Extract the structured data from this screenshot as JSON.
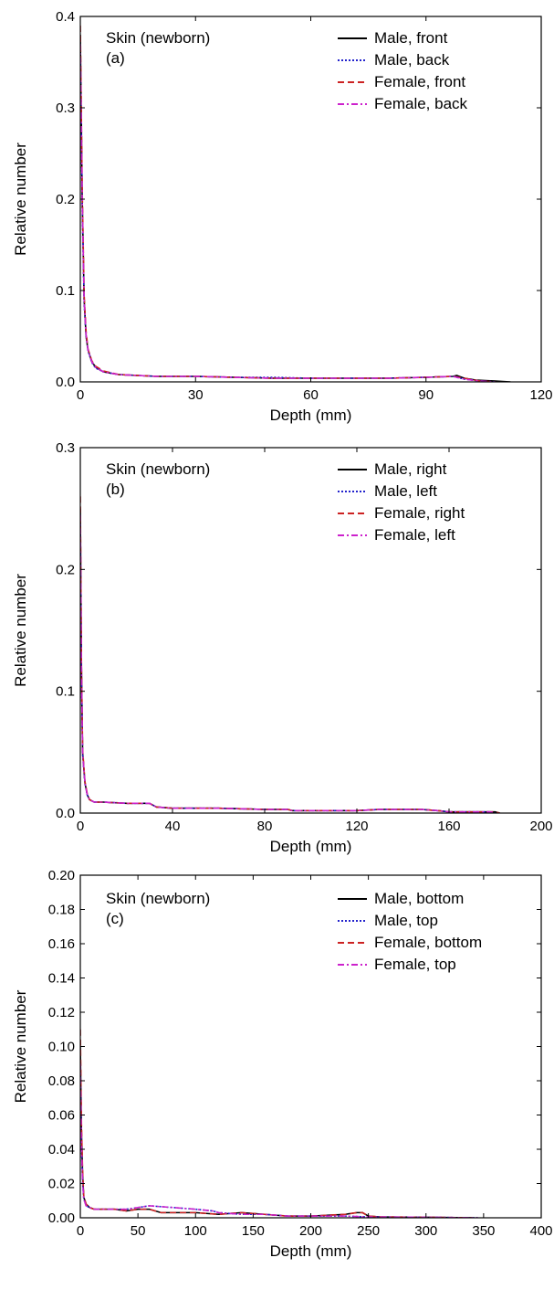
{
  "chart_data": [
    {
      "type": "line",
      "annotation": "Skin (newborn)",
      "panel_label": "(a)",
      "xlabel": "Depth (mm)",
      "ylabel": "Relative number",
      "xlim": [
        0,
        120
      ],
      "ylim": [
        0,
        0.4
      ],
      "x_ticks": [
        "0",
        "30",
        "60",
        "90",
        "120"
      ],
      "y_ticks": [
        "0.0",
        "0.1",
        "0.2",
        "0.3",
        "0.4"
      ],
      "legend_position": "top-right",
      "series": [
        {
          "name": "Male, front",
          "color": "#000000",
          "dash": "solid",
          "x": [
            0,
            0.5,
            1,
            1.5,
            2,
            3,
            4,
            6,
            10,
            20,
            30,
            40,
            50,
            60,
            70,
            80,
            90,
            97,
            98,
            100,
            103,
            108,
            112
          ],
          "y": [
            0.38,
            0.2,
            0.09,
            0.05,
            0.035,
            0.022,
            0.016,
            0.011,
            0.008,
            0.006,
            0.006,
            0.005,
            0.004,
            0.004,
            0.004,
            0.004,
            0.005,
            0.006,
            0.007,
            0.004,
            0.002,
            0.001,
            0.0
          ]
        },
        {
          "name": "Male, back",
          "color": "#2222cc",
          "dash": "dotted",
          "x": [
            0,
            0.5,
            1,
            1.5,
            2,
            3,
            4,
            6,
            10,
            20,
            30,
            40,
            50,
            60,
            70,
            80,
            90,
            97,
            100,
            104,
            108
          ],
          "y": [
            0.36,
            0.19,
            0.085,
            0.05,
            0.034,
            0.021,
            0.015,
            0.011,
            0.008,
            0.006,
            0.006,
            0.005,
            0.005,
            0.004,
            0.004,
            0.004,
            0.005,
            0.006,
            0.003,
            0.001,
            0.0
          ]
        },
        {
          "name": "Female, front",
          "color": "#cc2222",
          "dash": "dashed",
          "x": [
            0,
            0.5,
            1,
            1.5,
            2,
            3,
            4,
            6,
            10,
            20,
            30,
            40,
            50,
            60,
            70,
            80,
            90,
            97,
            100,
            104,
            108
          ],
          "y": [
            0.39,
            0.21,
            0.095,
            0.055,
            0.036,
            0.023,
            0.017,
            0.012,
            0.008,
            0.006,
            0.006,
            0.005,
            0.004,
            0.004,
            0.004,
            0.004,
            0.005,
            0.006,
            0.004,
            0.001,
            0.0
          ]
        },
        {
          "name": "Female, back",
          "color": "#cc22cc",
          "dash": "dashdot",
          "x": [
            0,
            0.5,
            1,
            1.5,
            2,
            3,
            4,
            6,
            10,
            20,
            30,
            40,
            50,
            60,
            70,
            80,
            90,
            97,
            100,
            104,
            108
          ],
          "y": [
            0.37,
            0.2,
            0.09,
            0.052,
            0.035,
            0.022,
            0.016,
            0.011,
            0.008,
            0.006,
            0.006,
            0.005,
            0.004,
            0.004,
            0.004,
            0.004,
            0.005,
            0.006,
            0.003,
            0.001,
            0.0
          ]
        }
      ]
    },
    {
      "type": "line",
      "annotation": "Skin (newborn)",
      "panel_label": "(b)",
      "xlabel": "Depth (mm)",
      "ylabel": "Relative number",
      "xlim": [
        0,
        200
      ],
      "ylim": [
        0,
        0.3
      ],
      "x_ticks": [
        "0",
        "40",
        "80",
        "120",
        "160",
        "200"
      ],
      "y_ticks": [
        "0.0",
        "0.1",
        "0.2",
        "0.3"
      ],
      "legend_position": "top-right",
      "series": [
        {
          "name": "Male, right",
          "color": "#000000",
          "dash": "solid",
          "x": [
            0,
            0.5,
            1,
            2,
            3,
            4,
            6,
            10,
            20,
            30,
            33,
            40,
            60,
            80,
            90,
            92,
            120,
            130,
            140,
            148,
            155,
            160,
            170,
            180,
            182
          ],
          "y": [
            0.25,
            0.12,
            0.05,
            0.025,
            0.015,
            0.011,
            0.009,
            0.009,
            0.008,
            0.008,
            0.005,
            0.004,
            0.004,
            0.003,
            0.003,
            0.002,
            0.002,
            0.003,
            0.003,
            0.003,
            0.002,
            0.001,
            0.001,
            0.001,
            0.0
          ]
        },
        {
          "name": "Male, left",
          "color": "#2222cc",
          "dash": "dotted",
          "x": [
            0,
            0.5,
            1,
            2,
            3,
            4,
            6,
            10,
            20,
            30,
            33,
            40,
            60,
            80,
            90,
            92,
            120,
            130,
            140,
            148,
            155,
            160,
            170,
            178,
            180
          ],
          "y": [
            0.24,
            0.11,
            0.048,
            0.024,
            0.015,
            0.011,
            0.009,
            0.009,
            0.008,
            0.008,
            0.005,
            0.004,
            0.004,
            0.003,
            0.003,
            0.002,
            0.002,
            0.003,
            0.003,
            0.003,
            0.002,
            0.001,
            0.001,
            0.001,
            0.0
          ]
        },
        {
          "name": "Female, right",
          "color": "#cc2222",
          "dash": "dashed",
          "x": [
            0,
            0.5,
            1,
            2,
            3,
            4,
            6,
            10,
            20,
            30,
            33,
            40,
            60,
            80,
            90,
            92,
            120,
            130,
            140,
            148,
            155,
            160,
            170,
            180,
            182
          ],
          "y": [
            0.26,
            0.12,
            0.052,
            0.026,
            0.016,
            0.011,
            0.009,
            0.009,
            0.008,
            0.008,
            0.005,
            0.004,
            0.004,
            0.003,
            0.003,
            0.002,
            0.002,
            0.003,
            0.003,
            0.003,
            0.002,
            0.001,
            0.001,
            0.001,
            0.0
          ]
        },
        {
          "name": "Female, left",
          "color": "#cc22cc",
          "dash": "dashdot",
          "x": [
            0,
            0.5,
            1,
            2,
            3,
            4,
            6,
            10,
            20,
            30,
            33,
            40,
            60,
            80,
            90,
            92,
            120,
            130,
            140,
            148,
            155,
            160,
            170,
            178,
            180
          ],
          "y": [
            0.245,
            0.115,
            0.05,
            0.025,
            0.015,
            0.011,
            0.009,
            0.009,
            0.008,
            0.008,
            0.005,
            0.004,
            0.004,
            0.003,
            0.003,
            0.002,
            0.002,
            0.003,
            0.003,
            0.003,
            0.002,
            0.001,
            0.001,
            0.001,
            0.0
          ]
        }
      ]
    },
    {
      "type": "line",
      "annotation": "Skin (newborn)",
      "panel_label": "(c)",
      "xlabel": "Depth (mm)",
      "ylabel": "Relative number",
      "xlim": [
        0,
        400
      ],
      "ylim": [
        0,
        0.2
      ],
      "x_ticks": [
        "0",
        "50",
        "100",
        "150",
        "200",
        "250",
        "300",
        "350",
        "400"
      ],
      "y_ticks": [
        "0.00",
        "0.02",
        "0.04",
        "0.06",
        "0.08",
        "0.10",
        "0.12",
        "0.14",
        "0.16",
        "0.18",
        "0.20"
      ],
      "legend_position": "top-right",
      "series": [
        {
          "name": "Male, bottom",
          "color": "#000000",
          "dash": "solid",
          "x": [
            0,
            1,
            2,
            3,
            5,
            8,
            12,
            20,
            30,
            40,
            50,
            60,
            70,
            80,
            100,
            120,
            140,
            160,
            180,
            200,
            230,
            240,
            245,
            250,
            260,
            300,
            340
          ],
          "y": [
            0.1,
            0.05,
            0.025,
            0.012,
            0.008,
            0.006,
            0.005,
            0.005,
            0.005,
            0.004,
            0.005,
            0.005,
            0.003,
            0.003,
            0.003,
            0.002,
            0.003,
            0.002,
            0.001,
            0.001,
            0.002,
            0.003,
            0.003,
            0.001,
            0.0005,
            0.0003,
            0.0
          ]
        },
        {
          "name": "Male, top",
          "color": "#2222cc",
          "dash": "dotted",
          "x": [
            0,
            1,
            2,
            3,
            5,
            8,
            12,
            20,
            30,
            40,
            50,
            60,
            80,
            100,
            115,
            120,
            140,
            160,
            180,
            200,
            230,
            250,
            300,
            345
          ],
          "y": [
            0.085,
            0.04,
            0.02,
            0.011,
            0.007,
            0.006,
            0.005,
            0.005,
            0.005,
            0.005,
            0.006,
            0.007,
            0.006,
            0.005,
            0.004,
            0.003,
            0.002,
            0.002,
            0.001,
            0.001,
            0.001,
            0.0005,
            0.0003,
            0.0
          ]
        },
        {
          "name": "Female, bottom",
          "color": "#cc2222",
          "dash": "dashed",
          "x": [
            0,
            1,
            2,
            3,
            5,
            8,
            12,
            20,
            30,
            40,
            50,
            60,
            70,
            80,
            100,
            120,
            140,
            160,
            180,
            200,
            230,
            240,
            245,
            250,
            260,
            300,
            340
          ],
          "y": [
            0.11,
            0.055,
            0.027,
            0.013,
            0.008,
            0.006,
            0.005,
            0.005,
            0.005,
            0.004,
            0.005,
            0.005,
            0.003,
            0.003,
            0.003,
            0.002,
            0.003,
            0.002,
            0.001,
            0.001,
            0.002,
            0.003,
            0.003,
            0.001,
            0.0005,
            0.0003,
            0.0
          ]
        },
        {
          "name": "Female, top",
          "color": "#cc22cc",
          "dash": "dashdot",
          "x": [
            0,
            1,
            2,
            3,
            5,
            8,
            12,
            20,
            30,
            40,
            50,
            60,
            80,
            100,
            115,
            120,
            140,
            160,
            180,
            200,
            230,
            250,
            300,
            345
          ],
          "y": [
            0.09,
            0.042,
            0.021,
            0.011,
            0.007,
            0.006,
            0.005,
            0.005,
            0.005,
            0.005,
            0.006,
            0.007,
            0.006,
            0.005,
            0.004,
            0.003,
            0.002,
            0.002,
            0.001,
            0.001,
            0.001,
            0.0005,
            0.0003,
            0.0
          ]
        }
      ]
    }
  ]
}
